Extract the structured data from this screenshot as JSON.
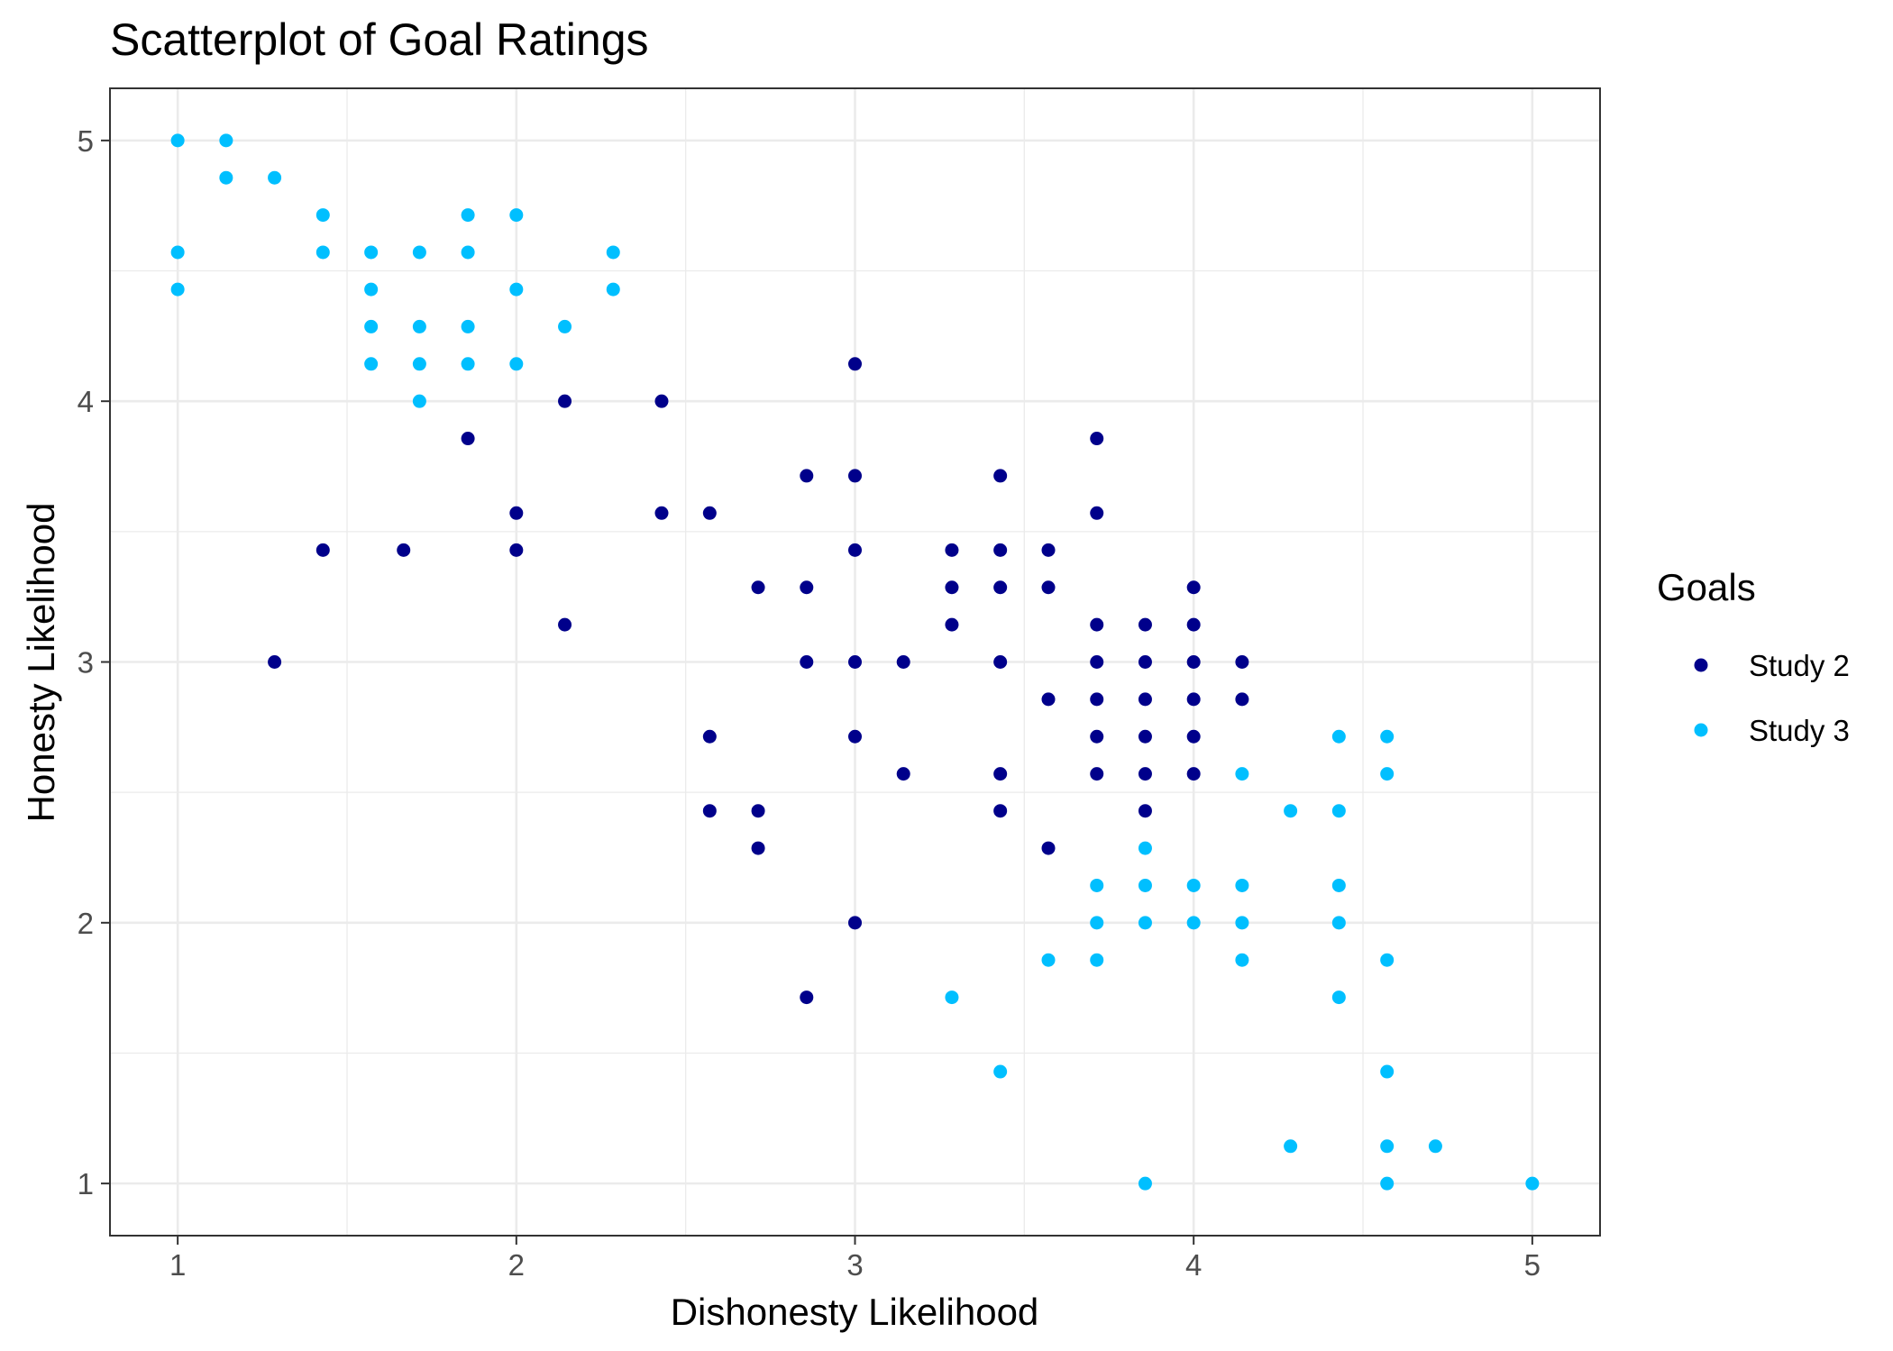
{
  "chart_data": {
    "type": "scatter",
    "title": "Scatterplot of Goal Ratings",
    "xlabel": "Dishonesty Likelihood",
    "ylabel": "Honesty Likelihood",
    "xlim": [
      0.8,
      5.2
    ],
    "ylim": [
      0.8,
      5.2
    ],
    "x_ticks": [
      1,
      2,
      3,
      4,
      5
    ],
    "y_ticks": [
      1,
      2,
      3,
      4,
      5
    ],
    "grid": true,
    "legend": {
      "title": "Goals",
      "position": "right"
    },
    "series": [
      {
        "name": "Study 2",
        "color": "#00008B",
        "points": [
          [
            1.286,
            3.0
          ],
          [
            1.429,
            3.429
          ],
          [
            1.667,
            3.429
          ],
          [
            1.857,
            3.857
          ],
          [
            2.0,
            3.571
          ],
          [
            2.0,
            3.429
          ],
          [
            2.143,
            4.0
          ],
          [
            2.143,
            3.143
          ],
          [
            2.429,
            4.0
          ],
          [
            2.429,
            3.571
          ],
          [
            2.571,
            3.571
          ],
          [
            2.571,
            2.714
          ],
          [
            2.571,
            2.429
          ],
          [
            2.714,
            3.286
          ],
          [
            2.714,
            2.429
          ],
          [
            2.714,
            2.286
          ],
          [
            2.857,
            3.714
          ],
          [
            2.857,
            3.286
          ],
          [
            2.857,
            3.0
          ],
          [
            2.857,
            1.714
          ],
          [
            3.0,
            4.143
          ],
          [
            3.0,
            3.714
          ],
          [
            3.0,
            3.429
          ],
          [
            3.0,
            3.0
          ],
          [
            3.0,
            2.714
          ],
          [
            3.0,
            2.0
          ],
          [
            3.143,
            3.0
          ],
          [
            3.143,
            2.571
          ],
          [
            3.286,
            3.429
          ],
          [
            3.286,
            3.286
          ],
          [
            3.286,
            3.143
          ],
          [
            3.429,
            3.714
          ],
          [
            3.429,
            3.429
          ],
          [
            3.429,
            3.286
          ],
          [
            3.429,
            3.0
          ],
          [
            3.429,
            2.571
          ],
          [
            3.429,
            2.429
          ],
          [
            3.571,
            3.429
          ],
          [
            3.571,
            3.286
          ],
          [
            3.571,
            2.857
          ],
          [
            3.571,
            2.286
          ],
          [
            3.714,
            3.857
          ],
          [
            3.714,
            3.571
          ],
          [
            3.714,
            3.143
          ],
          [
            3.714,
            3.0
          ],
          [
            3.714,
            2.857
          ],
          [
            3.714,
            2.714
          ],
          [
            3.714,
            2.571
          ],
          [
            3.857,
            3.143
          ],
          [
            3.857,
            3.0
          ],
          [
            3.857,
            2.857
          ],
          [
            3.857,
            2.714
          ],
          [
            3.857,
            2.571
          ],
          [
            3.857,
            2.429
          ],
          [
            4.0,
            3.286
          ],
          [
            4.0,
            3.143
          ],
          [
            4.0,
            3.0
          ],
          [
            4.0,
            2.857
          ],
          [
            4.0,
            2.714
          ],
          [
            4.0,
            2.571
          ],
          [
            4.143,
            3.0
          ],
          [
            4.143,
            2.857
          ]
        ]
      },
      {
        "name": "Study 3",
        "color": "#00BFFF",
        "points": [
          [
            1.0,
            5.0
          ],
          [
            1.0,
            4.571
          ],
          [
            1.0,
            4.429
          ],
          [
            1.143,
            5.0
          ],
          [
            1.143,
            4.857
          ],
          [
            1.286,
            4.857
          ],
          [
            1.429,
            4.714
          ],
          [
            1.429,
            4.571
          ],
          [
            1.571,
            4.571
          ],
          [
            1.571,
            4.429
          ],
          [
            1.571,
            4.286
          ],
          [
            1.571,
            4.143
          ],
          [
            1.714,
            4.571
          ],
          [
            1.714,
            4.286
          ],
          [
            1.714,
            4.143
          ],
          [
            1.714,
            4.0
          ],
          [
            1.857,
            4.714
          ],
          [
            1.857,
            4.571
          ],
          [
            1.857,
            4.286
          ],
          [
            1.857,
            4.143
          ],
          [
            2.0,
            4.714
          ],
          [
            2.0,
            4.429
          ],
          [
            2.0,
            4.143
          ],
          [
            2.143,
            4.286
          ],
          [
            2.286,
            4.571
          ],
          [
            2.286,
            4.429
          ],
          [
            3.286,
            1.714
          ],
          [
            3.429,
            1.429
          ],
          [
            3.571,
            1.857
          ],
          [
            3.714,
            2.143
          ],
          [
            3.714,
            2.0
          ],
          [
            3.714,
            1.857
          ],
          [
            3.857,
            2.286
          ],
          [
            3.857,
            2.143
          ],
          [
            3.857,
            2.0
          ],
          [
            3.857,
            1.0
          ],
          [
            4.0,
            2.143
          ],
          [
            4.0,
            2.0
          ],
          [
            4.143,
            2.571
          ],
          [
            4.143,
            2.143
          ],
          [
            4.143,
            2.0
          ],
          [
            4.143,
            1.857
          ],
          [
            4.286,
            2.429
          ],
          [
            4.286,
            1.143
          ],
          [
            4.429,
            2.714
          ],
          [
            4.429,
            2.429
          ],
          [
            4.429,
            2.143
          ],
          [
            4.429,
            2.0
          ],
          [
            4.429,
            1.714
          ],
          [
            4.571,
            2.714
          ],
          [
            4.571,
            2.571
          ],
          [
            4.571,
            1.857
          ],
          [
            4.571,
            1.429
          ],
          [
            4.571,
            1.143
          ],
          [
            4.571,
            1.0
          ],
          [
            4.714,
            1.143
          ],
          [
            5.0,
            1.0
          ]
        ]
      }
    ]
  }
}
